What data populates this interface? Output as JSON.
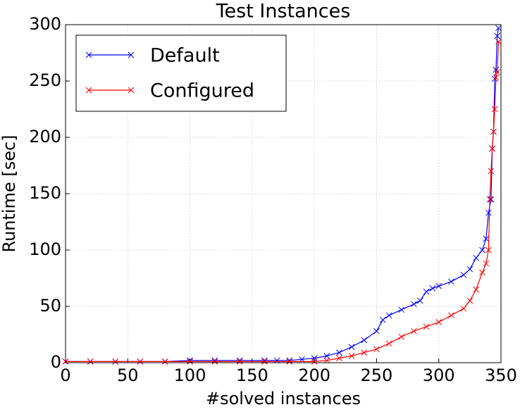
{
  "chart_data": {
    "type": "line",
    "title": "Test Instances",
    "x_label": "#solved instances",
    "y_label": "Runtime [sec]",
    "xlim": [
      0,
      350
    ],
    "ylim": [
      0,
      300
    ],
    "xticks": [
      0,
      50,
      100,
      150,
      200,
      250,
      300,
      350
    ],
    "yticks": [
      0,
      50,
      100,
      150,
      200,
      250,
      300
    ],
    "grid": true,
    "legend": "upper left",
    "series": [
      {
        "name": "Default",
        "color": "#0000ff",
        "x": [
          0,
          20,
          40,
          60,
          80,
          100,
          120,
          140,
          160,
          170,
          180,
          190,
          200,
          210,
          220,
          230,
          240,
          250,
          255,
          260,
          270,
          280,
          285,
          290,
          295,
          300,
          310,
          320,
          325,
          330,
          335,
          338,
          340,
          342,
          343,
          344,
          345,
          346,
          347,
          348
        ],
        "values": [
          1,
          1,
          1,
          1,
          1,
          2,
          2,
          2,
          2,
          2,
          2,
          3,
          4,
          6,
          9,
          14,
          20,
          28,
          38,
          42,
          47,
          52,
          55,
          63,
          66,
          68,
          72,
          78,
          83,
          93,
          100,
          110,
          133,
          145,
          190,
          205,
          252,
          260,
          290,
          297
        ]
      },
      {
        "name": "Configured",
        "color": "#ff0000",
        "x": [
          0,
          20,
          40,
          60,
          80,
          100,
          120,
          140,
          160,
          180,
          200,
          210,
          220,
          230,
          240,
          250,
          260,
          270,
          280,
          290,
          300,
          310,
          320,
          325,
          330,
          335,
          338,
          340,
          341,
          342,
          343,
          344,
          345,
          346,
          347,
          348
        ],
        "values": [
          1,
          1,
          1,
          1,
          1,
          1,
          1,
          1,
          1,
          1,
          1,
          2,
          4,
          6,
          9,
          12,
          17,
          23,
          28,
          32,
          36,
          42,
          48,
          55,
          65,
          80,
          88,
          100,
          145,
          170,
          190,
          205,
          225,
          253,
          258,
          285
        ]
      }
    ]
  }
}
